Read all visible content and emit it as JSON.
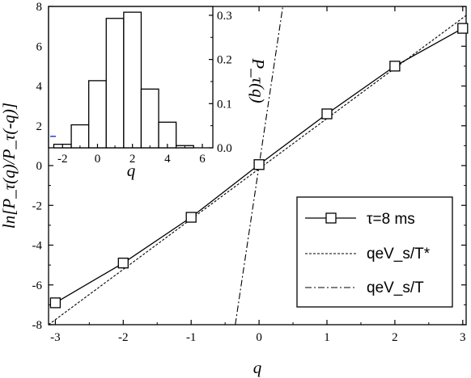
{
  "chart_data": [
    {
      "type": "line",
      "xlabel": "q",
      "ylabel": "ln[P_τ(q)/P_τ(-q)]",
      "xlim": [
        -3.1,
        3.05
      ],
      "ylim": [
        -8,
        8
      ],
      "x_ticks": [
        "-3",
        "-2",
        "-1",
        "0",
        "1",
        "2",
        "3"
      ],
      "y_ticks": [
        "-8",
        "-6",
        "-4",
        "-2",
        "0",
        "2",
        "4",
        "6",
        "8"
      ],
      "grid": false,
      "legend_position": "bottom-right",
      "series": [
        {
          "name": "τ=8 ms",
          "style": "solid-with-open-squares",
          "x": [
            -3,
            -2,
            -1,
            0,
            1,
            2,
            3
          ],
          "y": [
            -6.9,
            -4.9,
            -2.6,
            0.05,
            2.6,
            5.0,
            6.9
          ]
        },
        {
          "name": "qeV_s/T*",
          "style": "dashed",
          "x": [
            -3.1,
            3.05
          ],
          "y": [
            -8.0,
            7.55
          ]
        },
        {
          "name": "qeV_s/T",
          "style": "dash-dot",
          "x": [
            -0.35,
            0.35
          ],
          "y": [
            -8.0,
            8.0
          ]
        }
      ]
    },
    {
      "type": "bar",
      "subtype": "histogram",
      "xlabel": "q",
      "ylabel": "P_τ(q)",
      "xlim": [
        -2.8,
        6.6
      ],
      "ylim": [
        0,
        0.32
      ],
      "x_ticks": [
        "-2",
        "0",
        "2",
        "4",
        "6"
      ],
      "y_ticks": [
        "0.0",
        "0.1",
        "0.2",
        "0.3"
      ],
      "bin_width": 1,
      "bin_centers": [
        -2,
        -1,
        0,
        1,
        2,
        3,
        4,
        5
      ],
      "values": [
        0.008,
        0.052,
        0.152,
        0.293,
        0.307,
        0.133,
        0.058,
        0.005
      ]
    }
  ]
}
